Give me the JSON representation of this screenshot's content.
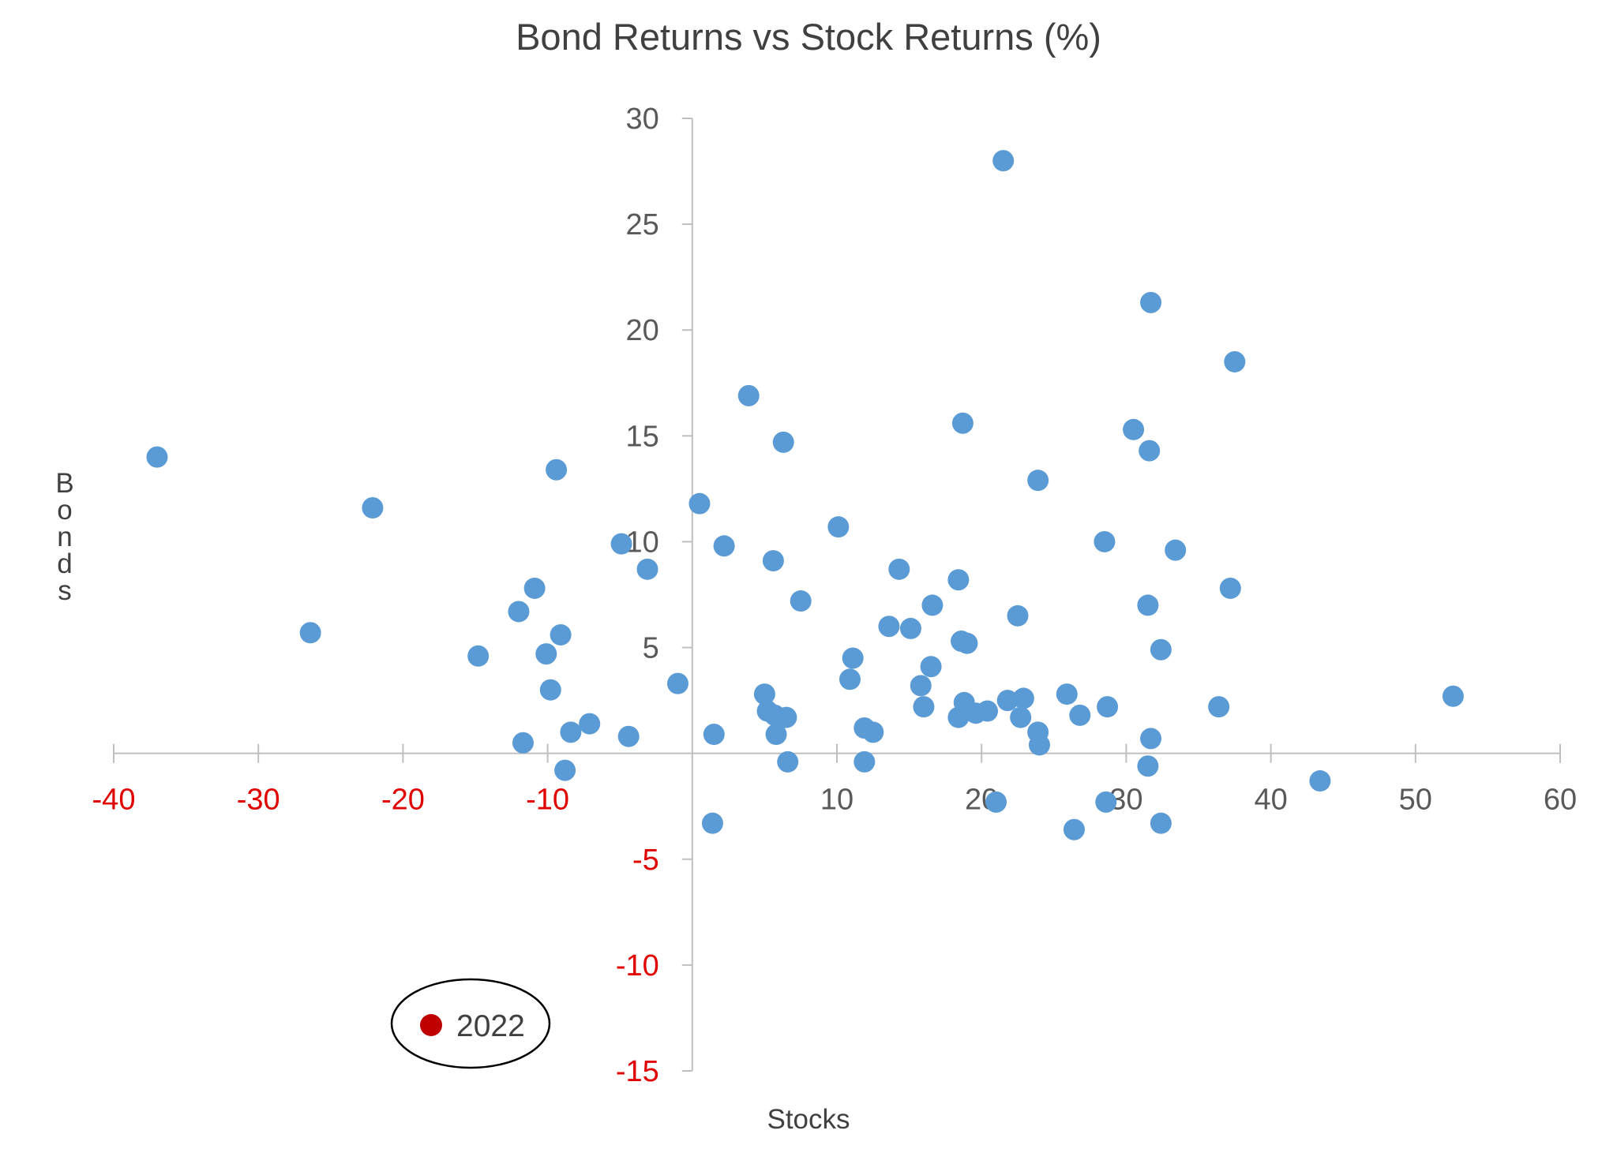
{
  "chart_data": {
    "type": "scatter",
    "title": "Bond Returns vs Stock Returns (%)",
    "xlabel": "Stocks",
    "ylabel": "Bonds",
    "xlim": [
      -40,
      60
    ],
    "ylim": [
      -15,
      30
    ],
    "x_ticks": [
      "-40",
      "-30",
      "-20",
      "-10",
      "10",
      "20",
      "30",
      "40",
      "50",
      "60"
    ],
    "x_tick_values": [
      -40,
      -30,
      -20,
      -10,
      10,
      20,
      30,
      40,
      50,
      60
    ],
    "y_ticks": [
      "30",
      "25",
      "20",
      "15",
      "10",
      "5",
      "-5",
      "-10",
      "-15"
    ],
    "y_tick_values": [
      30,
      25,
      20,
      15,
      10,
      5,
      -5,
      -10,
      -15
    ],
    "grid": false,
    "colors": {
      "points": "#5b9bd5",
      "highlight": "#c00000",
      "negative_tick": "#e00000",
      "positive_tick": "#595959",
      "axis": "#bfbfbf"
    },
    "series": [
      {
        "points": [
          [
            -37.0,
            14.0
          ],
          [
            -26.4,
            5.7
          ],
          [
            -22.1,
            11.6
          ],
          [
            -14.8,
            4.6
          ],
          [
            -12.0,
            6.7
          ],
          [
            -11.7,
            0.5
          ],
          [
            -10.9,
            7.8
          ],
          [
            -10.1,
            4.7
          ],
          [
            -9.8,
            3.0
          ],
          [
            -9.4,
            13.4
          ],
          [
            -9.1,
            5.6
          ],
          [
            -8.8,
            -0.8
          ],
          [
            -8.4,
            1.0
          ],
          [
            -7.1,
            1.4
          ],
          [
            -4.9,
            9.9
          ],
          [
            -4.4,
            0.8
          ],
          [
            -3.1,
            8.7
          ],
          [
            -1.0,
            3.3
          ],
          [
            0.5,
            11.8
          ],
          [
            1.4,
            -3.3
          ],
          [
            1.5,
            0.9
          ],
          [
            2.2,
            9.8
          ],
          [
            3.9,
            16.9
          ],
          [
            5.0,
            2.8
          ],
          [
            5.2,
            2.0
          ],
          [
            5.6,
            9.1
          ],
          [
            5.7,
            1.8
          ],
          [
            5.8,
            0.9
          ],
          [
            6.3,
            14.7
          ],
          [
            6.5,
            1.7
          ],
          [
            6.6,
            -0.4
          ],
          [
            7.5,
            7.2
          ],
          [
            10.1,
            10.7
          ],
          [
            10.9,
            3.5
          ],
          [
            11.1,
            4.5
          ],
          [
            11.9,
            1.2
          ],
          [
            11.9,
            -0.4
          ],
          [
            12.5,
            1.0
          ],
          [
            13.6,
            6.0
          ],
          [
            14.3,
            8.7
          ],
          [
            15.1,
            5.9
          ],
          [
            15.8,
            3.2
          ],
          [
            16.0,
            2.2
          ],
          [
            16.5,
            4.1
          ],
          [
            16.6,
            7.0
          ],
          [
            18.4,
            8.2
          ],
          [
            18.4,
            1.7
          ],
          [
            18.6,
            5.3
          ],
          [
            18.7,
            15.6
          ],
          [
            18.8,
            2.4
          ],
          [
            19.0,
            5.2
          ],
          [
            19.6,
            1.9
          ],
          [
            20.4,
            2.0
          ],
          [
            21.0,
            -2.3
          ],
          [
            21.5,
            28.0
          ],
          [
            21.8,
            2.5
          ],
          [
            22.5,
            6.5
          ],
          [
            22.7,
            1.7
          ],
          [
            22.9,
            2.6
          ],
          [
            23.9,
            12.9
          ],
          [
            23.9,
            1.0
          ],
          [
            24.0,
            0.4
          ],
          [
            25.9,
            2.8
          ],
          [
            26.4,
            -3.6
          ],
          [
            26.8,
            1.8
          ],
          [
            28.5,
            10.0
          ],
          [
            28.6,
            -2.3
          ],
          [
            28.7,
            2.2
          ],
          [
            30.5,
            15.3
          ],
          [
            31.5,
            7.0
          ],
          [
            31.5,
            -0.6
          ],
          [
            31.6,
            14.3
          ],
          [
            31.7,
            0.7
          ],
          [
            31.7,
            21.3
          ],
          [
            32.4,
            4.9
          ],
          [
            32.4,
            -3.3
          ],
          [
            33.4,
            9.6
          ],
          [
            36.4,
            2.2
          ],
          [
            37.2,
            7.8
          ],
          [
            37.5,
            18.5
          ],
          [
            43.4,
            -1.3
          ],
          [
            52.6,
            2.7
          ]
        ]
      }
    ],
    "annotation": {
      "label": "2022",
      "marker_color": "#c00000",
      "enclosed": true
    }
  }
}
